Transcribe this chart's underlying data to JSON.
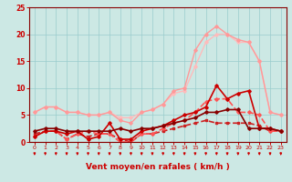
{
  "bg_color": "#cce8e4",
  "grid_color": "#99cccc",
  "xlabel": "Vent moyen/en rafales ( km/h )",
  "xlim": [
    -0.5,
    23.5
  ],
  "ylim": [
    0,
    25
  ],
  "yticks": [
    0,
    5,
    10,
    15,
    20,
    25
  ],
  "xticks": [
    0,
    1,
    2,
    3,
    4,
    5,
    6,
    7,
    8,
    9,
    10,
    11,
    12,
    13,
    14,
    15,
    16,
    17,
    18,
    19,
    20,
    21,
    22,
    23
  ],
  "lines": [
    {
      "x": [
        0,
        1,
        2,
        3,
        4,
        5,
        6,
        7,
        8,
        9,
        10,
        11,
        12,
        13,
        14,
        15,
        16,
        17,
        18,
        19,
        20,
        21,
        22,
        23
      ],
      "y": [
        5.5,
        6.5,
        6.5,
        5.5,
        5.5,
        5.0,
        5.0,
        5.5,
        4.5,
        4.5,
        5.5,
        6.0,
        7.0,
        9.0,
        9.5,
        14.0,
        18.5,
        20.0,
        20.0,
        18.5,
        18.5,
        15.0,
        5.5,
        5.0
      ],
      "color": "#ffbbbb",
      "lw": 1.0,
      "ls": "-",
      "marker": "D",
      "ms": 1.8
    },
    {
      "x": [
        0,
        1,
        2,
        3,
        4,
        5,
        6,
        7,
        8,
        9,
        10,
        11,
        12,
        13,
        14,
        15,
        16,
        17,
        18,
        19,
        20,
        21,
        22,
        23
      ],
      "y": [
        5.5,
        6.5,
        6.5,
        5.5,
        5.5,
        5.0,
        5.0,
        5.5,
        4.0,
        3.5,
        5.5,
        6.0,
        7.0,
        9.5,
        10.0,
        17.0,
        20.0,
        21.5,
        20.0,
        19.0,
        18.5,
        15.0,
        5.5,
        5.0
      ],
      "color": "#ff9999",
      "lw": 1.0,
      "ls": "-",
      "marker": "D",
      "ms": 1.8
    },
    {
      "x": [
        0,
        1,
        2,
        3,
        4,
        5,
        6,
        7,
        8,
        9,
        10,
        11,
        12,
        13,
        14,
        15,
        16,
        17,
        18,
        19,
        20,
        21,
        22,
        23
      ],
      "y": [
        1.5,
        2.0,
        2.0,
        0.5,
        1.5,
        1.0,
        1.5,
        1.5,
        0.5,
        0.0,
        1.5,
        1.5,
        2.0,
        2.5,
        3.0,
        3.5,
        4.0,
        3.5,
        3.5,
        3.5,
        3.5,
        3.0,
        2.0,
        2.0
      ],
      "color": "#cc2222",
      "lw": 1.2,
      "ls": "--",
      "marker": "s",
      "ms": 1.8
    },
    {
      "x": [
        0,
        1,
        2,
        3,
        4,
        5,
        6,
        7,
        8,
        9,
        10,
        11,
        12,
        13,
        14,
        15,
        16,
        17,
        18,
        19,
        20,
        21,
        22,
        23
      ],
      "y": [
        1.0,
        2.0,
        2.0,
        0.5,
        1.5,
        2.0,
        1.5,
        1.5,
        0.0,
        0.0,
        1.5,
        1.5,
        2.5,
        3.5,
        4.0,
        5.5,
        7.5,
        8.0,
        8.0,
        5.5,
        5.5,
        5.0,
        2.0,
        2.0
      ],
      "color": "#ff5555",
      "lw": 1.2,
      "ls": "--",
      "marker": "D",
      "ms": 1.8
    },
    {
      "x": [
        0,
        1,
        2,
        3,
        4,
        5,
        6,
        7,
        8,
        9,
        10,
        11,
        12,
        13,
        14,
        15,
        16,
        17,
        18,
        19,
        20,
        21,
        22,
        23
      ],
      "y": [
        1.0,
        2.0,
        2.0,
        1.5,
        2.0,
        0.5,
        1.0,
        3.5,
        0.5,
        0.5,
        2.0,
        2.5,
        3.0,
        4.0,
        5.0,
        5.5,
        6.5,
        10.5,
        8.0,
        9.0,
        9.5,
        2.5,
        2.5,
        2.0
      ],
      "color": "#cc0000",
      "lw": 1.2,
      "ls": "-",
      "marker": "D",
      "ms": 1.8
    },
    {
      "x": [
        0,
        1,
        2,
        3,
        4,
        5,
        6,
        7,
        8,
        9,
        10,
        11,
        12,
        13,
        14,
        15,
        16,
        17,
        18,
        19,
        20,
        21,
        22,
        23
      ],
      "y": [
        2.0,
        2.5,
        2.5,
        2.0,
        2.0,
        2.0,
        2.0,
        2.0,
        2.5,
        2.0,
        2.5,
        2.5,
        3.0,
        3.5,
        4.0,
        4.5,
        5.5,
        5.5,
        6.0,
        6.0,
        2.5,
        2.5,
        2.5,
        2.0
      ],
      "color": "#880000",
      "lw": 1.2,
      "ls": "-",
      "marker": "D",
      "ms": 1.8
    }
  ],
  "arrow_color": "#cc0000",
  "xlabel_color": "#cc0000",
  "tick_color": "#cc0000",
  "axis_color": "#880000"
}
